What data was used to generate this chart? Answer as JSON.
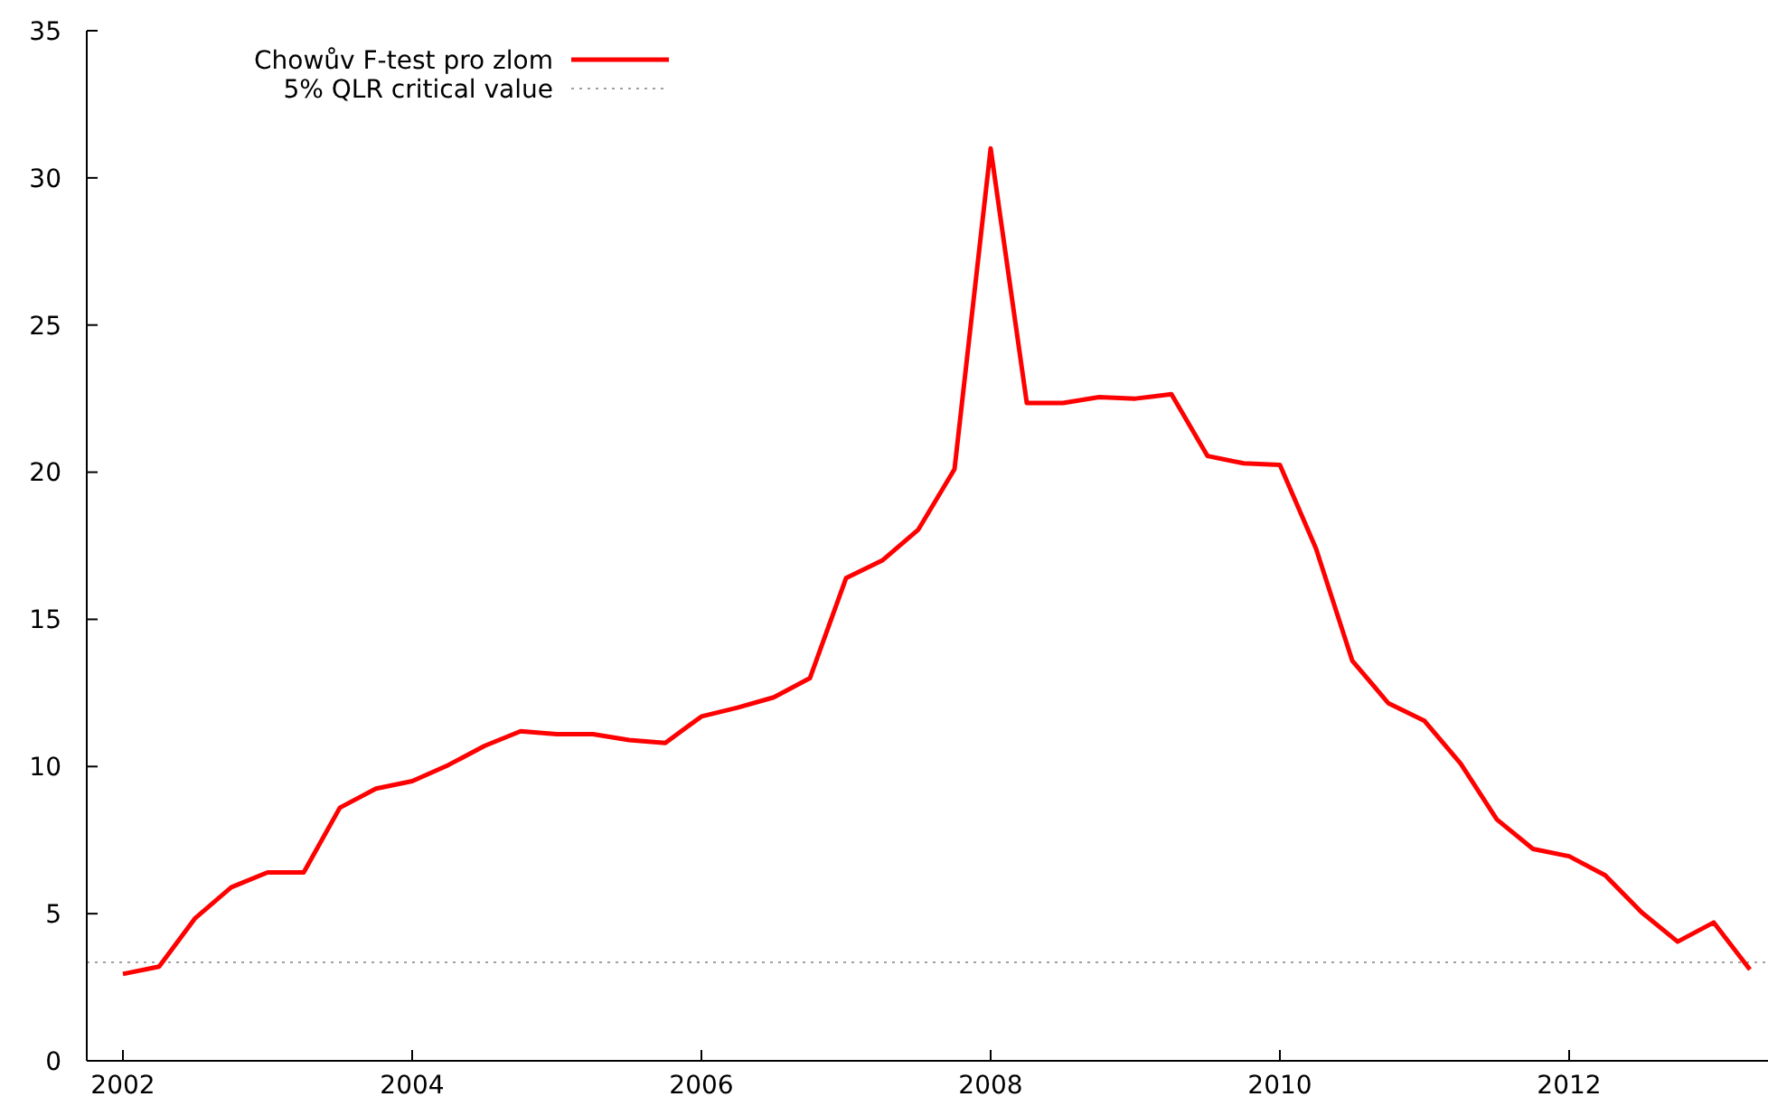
{
  "chart_data": {
    "type": "line",
    "x": [
      2002,
      2002.25,
      2002.5,
      2002.75,
      2003,
      2003.25,
      2003.5,
      2003.75,
      2004,
      2004.25,
      2004.5,
      2004.75,
      2005,
      2005.25,
      2005.5,
      2005.75,
      2006,
      2006.25,
      2006.5,
      2006.75,
      2007,
      2007.25,
      2007.5,
      2007.75,
      2008,
      2008.25,
      2008.5,
      2008.75,
      2009,
      2009.25,
      2009.5,
      2009.75,
      2010,
      2010.25,
      2010.5,
      2010.75,
      2011,
      2011.25,
      2011.5,
      2011.75,
      2012,
      2012.25,
      2012.5,
      2012.75,
      2013,
      2013.25
    ],
    "series": [
      {
        "name": "Chowův F-test pro zlom",
        "color": "#ff0000",
        "values": [
          2.95,
          3.2,
          4.85,
          5.9,
          6.4,
          6.4,
          8.6,
          9.25,
          9.5,
          10.05,
          10.7,
          11.2,
          11.1,
          11.1,
          10.9,
          10.8,
          11.7,
          12.0,
          12.35,
          13.0,
          16.4,
          17.0,
          18.05,
          20.1,
          31.0,
          22.35,
          22.35,
          22.55,
          22.5,
          22.65,
          20.55,
          20.3,
          20.25,
          17.4,
          13.6,
          12.15,
          11.55,
          10.1,
          8.2,
          7.2,
          6.95,
          6.3,
          5.05,
          4.05,
          4.7,
          3.1
        ]
      }
    ],
    "ref_lines": [
      {
        "axis": "y",
        "value": 3.35,
        "label": "5% QLR critical value",
        "color": "#a0a0a0",
        "line_style": "dotted"
      }
    ],
    "xlim": [
      2001.75,
      2013.375
    ],
    "xticks": [
      2002,
      2004,
      2006,
      2008,
      2010,
      2012
    ],
    "ylim": [
      0,
      35
    ],
    "yticks": [
      0,
      5,
      10,
      15,
      20,
      25,
      30,
      35
    ],
    "legend": "top left",
    "grid": false
  }
}
